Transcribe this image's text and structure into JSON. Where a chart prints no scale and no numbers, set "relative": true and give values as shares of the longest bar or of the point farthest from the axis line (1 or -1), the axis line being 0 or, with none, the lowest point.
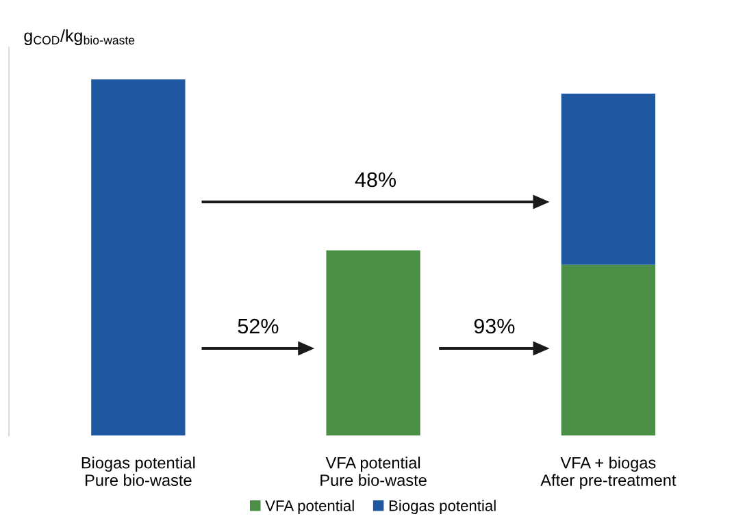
{
  "chart_data": {
    "type": "bar",
    "stacked": true,
    "relative": true,
    "ylabel": "g$_{COD}$/kg$_{bio-waste}$",
    "categories": [
      "Biogas potential\nPure bio-waste",
      "VFA potential\nPure bio-waste",
      "VFA + biogas\nAfter pre-treatment"
    ],
    "series": [
      {
        "name": "VFA potential",
        "color": "#4a8f45",
        "values": [
          null,
          0.52,
          0.48
        ]
      },
      {
        "name": "Biogas potential",
        "color": "#1f57a0",
        "values": [
          1,
          null,
          0.48
        ]
      }
    ],
    "annotations": [
      "48%",
      "52%",
      "93%"
    ],
    "legend": "bottom",
    "grid": false
  }
}
